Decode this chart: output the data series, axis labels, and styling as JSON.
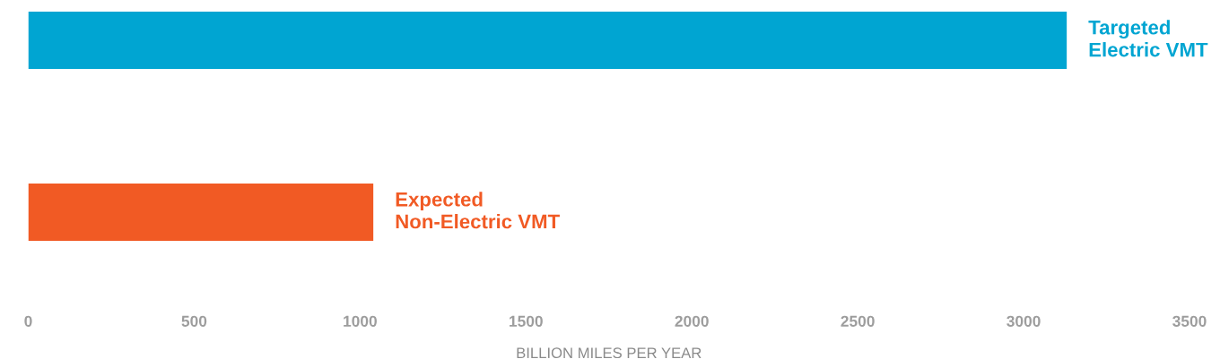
{
  "chart_data": {
    "type": "bar",
    "orientation": "horizontal",
    "categories": [
      "Targeted\nElectric VMT",
      "Expected\nNon-Electric VMT"
    ],
    "values": [
      3130,
      1040
    ],
    "colors": [
      "#00a5d2",
      "#f15a24"
    ],
    "xlabel": "BILLION MILES PER YEAR",
    "xlim": [
      0,
      3500
    ],
    "xticks": [
      0,
      500,
      1000,
      1500,
      2000,
      2500,
      3000,
      3500
    ],
    "tick_labels": "x",
    "grid": false
  }
}
